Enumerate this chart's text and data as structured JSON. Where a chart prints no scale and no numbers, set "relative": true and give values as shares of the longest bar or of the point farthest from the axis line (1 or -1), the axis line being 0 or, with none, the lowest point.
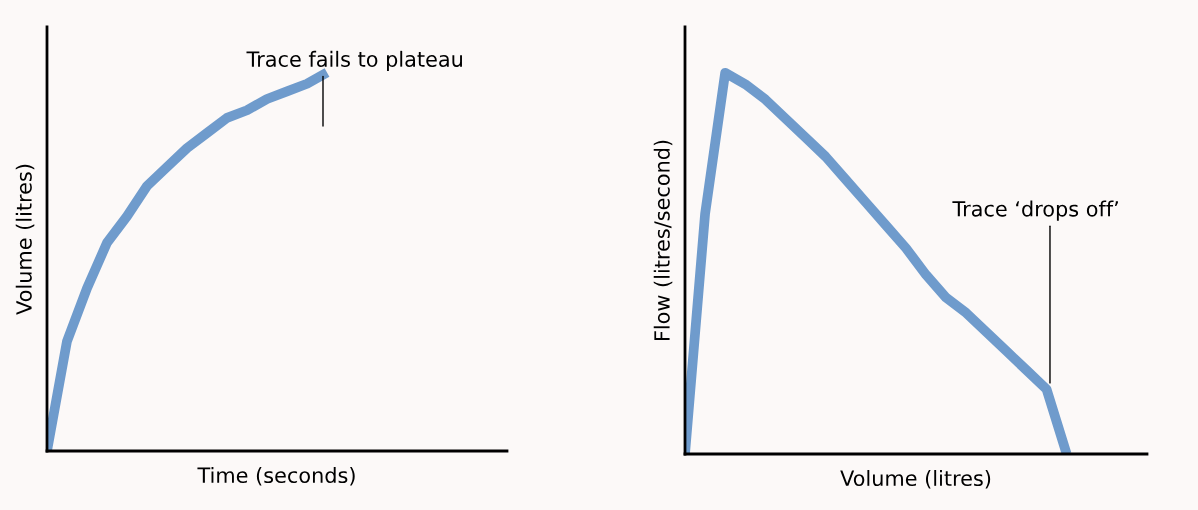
{
  "chart_data": [
    {
      "type": "line",
      "relative": true,
      "xlabel": "Time (seconds)",
      "ylabel": "Volume (litres)",
      "annotations": [
        "Trace fails to plateau"
      ],
      "categories": [
        null,
        null,
        null,
        null,
        null,
        null,
        null,
        null,
        null,
        null,
        null,
        null,
        null,
        null,
        null,
        null,
        null,
        null,
        null,
        null,
        null,
        null,
        null,
        null
      ],
      "series": [
        {
          "color": "#6f9bcc",
          "values": [
            0,
            0.29,
            0.43,
            0.55,
            0.62,
            0.7,
            0.75,
            0.8,
            0.84,
            0.88,
            0.9,
            0.93,
            0.95,
            0.97,
            1.0,
            null,
            null,
            null,
            null,
            null,
            null,
            null,
            null,
            null
          ]
        }
      ]
    },
    {
      "type": "line",
      "relative": true,
      "xlabel": "Volume (litres)",
      "ylabel": "Flow (litres/second)",
      "annotations": [
        "Trace ‘drops off’"
      ],
      "categories": [
        null,
        null,
        null,
        null,
        null,
        null,
        null,
        null,
        null,
        null,
        null,
        null,
        null,
        null,
        null,
        null,
        null,
        null,
        null,
        null,
        null,
        null,
        null,
        null
      ],
      "series": [
        {
          "color": "#6f9bcc",
          "values": [
            0,
            0.63,
            1.0,
            0.97,
            0.93,
            0.88,
            0.83,
            0.78,
            0.72,
            0.66,
            0.6,
            0.54,
            0.47,
            0.41,
            0.37,
            0.32,
            0.27,
            0.22,
            0.17,
            0,
            null,
            null,
            null,
            null
          ]
        }
      ]
    }
  ]
}
